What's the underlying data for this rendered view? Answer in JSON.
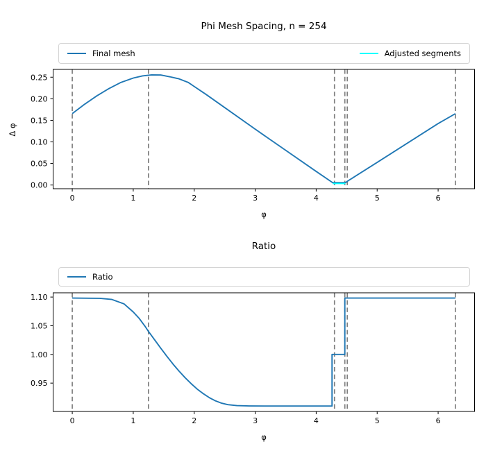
{
  "figure": {
    "background": "#ffffff"
  },
  "chart_data": [
    {
      "type": "line",
      "title": "Phi Mesh Spacing, n = 254",
      "xlabel": "φ",
      "ylabel": "Δ φ",
      "xlim": [
        -0.314,
        6.597
      ],
      "ylim": [
        -0.0086,
        0.2681
      ],
      "xticks": [
        0,
        1,
        2,
        3,
        4,
        5,
        6
      ],
      "xtick_labels": [
        "0",
        "1",
        "2",
        "3",
        "4",
        "5",
        "6"
      ],
      "yticks": [
        0.0,
        0.05,
        0.1,
        0.15,
        0.2,
        0.25
      ],
      "ytick_labels": [
        "0.00",
        "0.05",
        "0.10",
        "0.15",
        "0.20",
        "0.25"
      ],
      "grid": false,
      "legend_position": "above-axes-full-width",
      "legend": [
        {
          "label": "Final mesh",
          "color": "#1f77b4"
        },
        {
          "label": "Adjusted segments",
          "color": "#00ffff"
        }
      ],
      "vlines": {
        "x": [
          0,
          1.25,
          4.3,
          4.47,
          4.51,
          6.283
        ],
        "color": "#7f7f7f",
        "style": "dashed"
      },
      "series": [
        {
          "name": "Final mesh",
          "color": "#1f77b4",
          "points": [
            [
              0,
              0.1655
            ],
            [
              0.2,
              0.187
            ],
            [
              0.4,
              0.2065
            ],
            [
              0.6,
              0.2235
            ],
            [
              0.8,
              0.238
            ],
            [
              1.0,
              0.248
            ],
            [
              1.15,
              0.253
            ],
            [
              1.3,
              0.2553
            ],
            [
              1.45,
              0.2551
            ],
            [
              1.6,
              0.251
            ],
            [
              1.75,
              0.2462
            ],
            [
              1.9,
              0.238
            ],
            [
              2.0,
              0.2285
            ],
            [
              2.2,
              0.2095
            ],
            [
              2.5,
              0.1795
            ],
            [
              3.0,
              0.1295
            ],
            [
              3.5,
              0.0805
            ],
            [
              4.0,
              0.0315
            ],
            [
              4.27,
              0.0055
            ],
            [
              4.48,
              0.0055
            ],
            [
              4.52,
              0.0095
            ],
            [
              5.0,
              0.0525
            ],
            [
              5.5,
              0.0975
            ],
            [
              6.0,
              0.1425
            ],
            [
              6.283,
              0.1655
            ]
          ]
        },
        {
          "name": "Adjusted segments",
          "color": "#00ffff",
          "points": [
            [
              4.27,
              0.0035
            ],
            [
              4.48,
              0.0035
            ]
          ]
        }
      ]
    },
    {
      "type": "line",
      "title": "Ratio",
      "xlabel": "φ",
      "ylabel": "",
      "xlim": [
        -0.314,
        6.597
      ],
      "ylim": [
        0.9006,
        1.1074
      ],
      "xticks": [
        0,
        1,
        2,
        3,
        4,
        5,
        6
      ],
      "xtick_labels": [
        "0",
        "1",
        "2",
        "3",
        "4",
        "5",
        "6"
      ],
      "yticks": [
        0.95,
        1.0,
        1.05,
        1.1
      ],
      "ytick_labels": [
        "0.95",
        "1.00",
        "1.05",
        "1.10"
      ],
      "grid": false,
      "legend_position": "above-axes-full-width",
      "legend": [
        {
          "label": "Ratio",
          "color": "#1f77b4"
        }
      ],
      "vlines": {
        "x": [
          0,
          1.25,
          4.3,
          4.47,
          4.51,
          6.283
        ],
        "color": "#7f7f7f",
        "style": "dashed"
      },
      "series": [
        {
          "name": "Ratio",
          "color": "#1f77b4",
          "points": [
            [
              0,
              1.0983
            ],
            [
              0.45,
              1.0978
            ],
            [
              0.65,
              1.0958
            ],
            [
              0.85,
              1.088
            ],
            [
              1.0,
              1.074
            ],
            [
              1.1,
              1.0625
            ],
            [
              1.2,
              1.048
            ],
            [
              1.25,
              1.04
            ],
            [
              1.35,
              1.0255
            ],
            [
              1.45,
              1.011
            ],
            [
              1.55,
              0.997
            ],
            [
              1.65,
              0.9835
            ],
            [
              1.75,
              0.971
            ],
            [
              1.85,
              0.9595
            ],
            [
              1.95,
              0.949
            ],
            [
              2.05,
              0.9395
            ],
            [
              2.15,
              0.9315
            ],
            [
              2.25,
              0.9245
            ],
            [
              2.35,
              0.919
            ],
            [
              2.45,
              0.915
            ],
            [
              2.55,
              0.9125
            ],
            [
              2.7,
              0.9108
            ],
            [
              2.9,
              0.9102
            ],
            [
              3.2,
              0.91
            ],
            [
              4.26,
              0.91
            ],
            [
              4.26,
              1.0
            ],
            [
              4.47,
              1.0
            ],
            [
              4.47,
              1.0983
            ],
            [
              6.283,
              1.0983
            ]
          ]
        }
      ]
    }
  ]
}
